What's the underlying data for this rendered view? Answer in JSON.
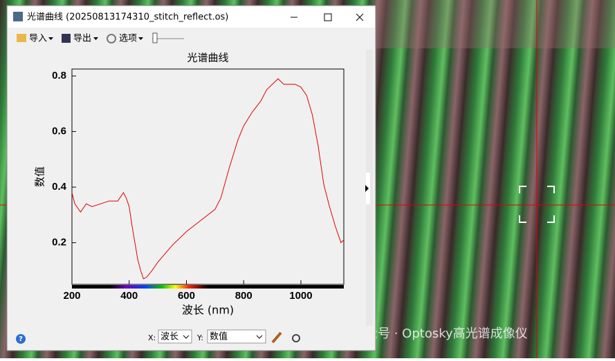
{
  "window": {
    "title": "光谱曲线 (20250813174310_stitch_reflect.os)",
    "toolbar": [
      "导入",
      "导出",
      "选项"
    ],
    "help": "?"
  },
  "controls": {
    "x_prefix": "X:",
    "x_select": "波长",
    "y_prefix": "Y:",
    "y_select": "数值"
  },
  "watermark": "公众号 · Optosky高光谱成像仪",
  "chart_data": {
    "type": "line",
    "title": "光谱曲线",
    "x_label": "波长 (nm)",
    "y_label": "数值",
    "x": [
      200,
      210,
      230,
      250,
      270,
      300,
      330,
      360,
      380,
      390,
      400,
      410,
      420,
      430,
      440,
      450,
      460,
      480,
      500,
      550,
      600,
      650,
      700,
      720,
      750,
      780,
      800,
      830,
      860,
      880,
      900,
      920,
      940,
      960,
      980,
      1000,
      1020,
      1040,
      1060,
      1080,
      1100,
      1120,
      1140,
      1150
    ],
    "values": [
      0.38,
      0.34,
      0.31,
      0.34,
      0.33,
      0.34,
      0.35,
      0.35,
      0.38,
      0.36,
      0.33,
      0.26,
      0.2,
      0.14,
      0.1,
      0.07,
      0.075,
      0.1,
      0.13,
      0.19,
      0.24,
      0.28,
      0.32,
      0.36,
      0.47,
      0.57,
      0.62,
      0.67,
      0.71,
      0.75,
      0.77,
      0.79,
      0.77,
      0.77,
      0.77,
      0.76,
      0.73,
      0.66,
      0.55,
      0.41,
      0.33,
      0.26,
      0.2,
      0.21
    ],
    "color": "#e00000",
    "xlim": [
      200,
      1150
    ],
    "ylim": [
      0.05,
      0.825
    ],
    "xticks": [
      200,
      400,
      600,
      800,
      1000
    ],
    "yticks": [
      0.2,
      0.4,
      0.6,
      0.8
    ]
  }
}
